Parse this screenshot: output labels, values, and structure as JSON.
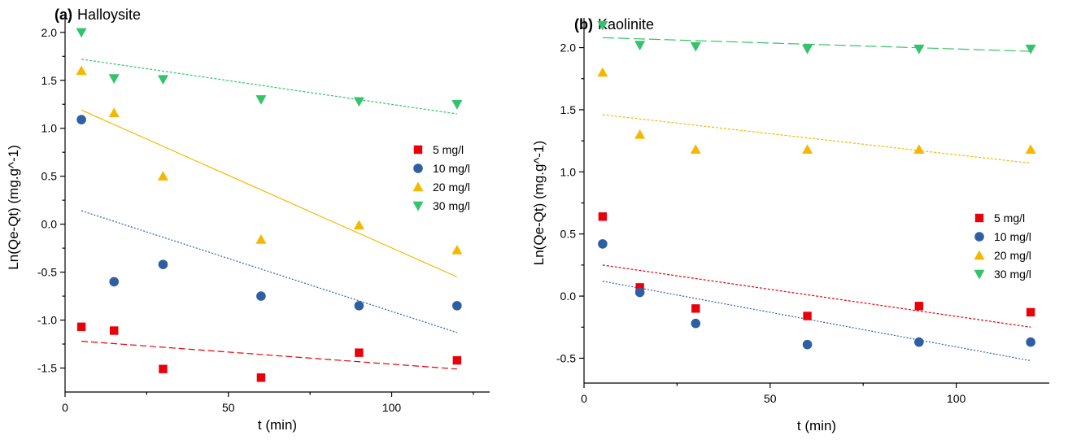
{
  "chart_data": [
    {
      "type": "scatter",
      "panel_letter": "(a)",
      "title": "Halloysite",
      "xlabel": "t (min)",
      "ylabel": "Ln(Qe-Qt) (mg.g^-1)",
      "xlim": [
        0,
        130
      ],
      "ylim": [
        -1.75,
        2.1
      ],
      "xticks": [
        0,
        50,
        100
      ],
      "yticks": [
        -1.5,
        -1.0,
        -0.5,
        0.0,
        0.5,
        1.0,
        1.5,
        2.0
      ],
      "ytick_labels": [
        "-1.5",
        "-1.0",
        "-0.5",
        "0.0",
        "0.5",
        "1.0",
        "1.5",
        "2.0"
      ],
      "legend_position": "right-middle",
      "grid": false,
      "series": [
        {
          "name": "5 mg/l",
          "marker": "square",
          "color": "#e8000b",
          "dash": "8,4",
          "x": [
            5,
            15,
            30,
            60,
            90,
            120
          ],
          "y": [
            -1.07,
            -1.11,
            -1.51,
            -1.6,
            -1.34,
            -1.42
          ],
          "fit": {
            "x": [
              5,
              120
            ],
            "y": [
              -1.22,
              -1.51
            ]
          }
        },
        {
          "name": "10 mg/l",
          "marker": "circle",
          "color": "#2e5fa3",
          "dash": "2,2",
          "x": [
            5,
            15,
            30,
            60,
            90,
            120
          ],
          "y": [
            1.09,
            -0.6,
            -0.42,
            -0.75,
            -0.85,
            -0.85
          ],
          "fit": {
            "x": [
              5,
              120
            ],
            "y": [
              0.14,
              -1.13
            ]
          }
        },
        {
          "name": "20 mg/l",
          "marker": "triangle-up",
          "color": "#f5b800",
          "dash": "",
          "x": [
            5,
            15,
            30,
            60,
            90,
            120
          ],
          "y": [
            1.6,
            1.16,
            0.5,
            -0.16,
            -0.01,
            -0.27
          ],
          "fit": {
            "x": [
              5,
              120
            ],
            "y": [
              1.19,
              -0.55
            ]
          }
        },
        {
          "name": "30 mg/l",
          "marker": "triangle-down",
          "color": "#33c36b",
          "dash": "3,2",
          "x": [
            5,
            15,
            30,
            60,
            90,
            120
          ],
          "y": [
            2.0,
            1.52,
            1.51,
            1.3,
            1.28,
            1.25
          ],
          "fit": {
            "x": [
              5,
              120
            ],
            "y": [
              1.72,
              1.15
            ]
          }
        }
      ]
    },
    {
      "type": "scatter",
      "panel_letter": "(b)",
      "title": "Kaolinite",
      "xlabel": "t (min)",
      "ylabel": "Ln(Qe-Qt) (mg.g^-1)",
      "xlim": [
        0,
        125
      ],
      "ylim": [
        -0.7,
        2.2
      ],
      "xticks": [
        0,
        50,
        100
      ],
      "yticks": [
        -0.5,
        0.0,
        0.5,
        1.0,
        1.5,
        2.0
      ],
      "ytick_labels": [
        "-0.5",
        "0.0",
        "0.5",
        "1.0",
        "1.5",
        "2.0"
      ],
      "legend_position": "right-middle",
      "grid": false,
      "series": [
        {
          "name": "5 mg/l",
          "marker": "square",
          "color": "#e8000b",
          "dash": "3,2",
          "x": [
            5,
            15,
            30,
            60,
            90,
            120
          ],
          "y": [
            0.64,
            0.07,
            -0.1,
            -0.16,
            -0.08,
            -0.13
          ],
          "fit": {
            "x": [
              5,
              120
            ],
            "y": [
              0.25,
              -0.25
            ]
          }
        },
        {
          "name": "10 mg/l",
          "marker": "circle",
          "color": "#2e5fa3",
          "dash": "2,2",
          "x": [
            5,
            15,
            30,
            60,
            90,
            120
          ],
          "y": [
            0.42,
            0.03,
            -0.22,
            -0.39,
            -0.37,
            -0.37
          ],
          "fit": {
            "x": [
              5,
              120
            ],
            "y": [
              0.12,
              -0.52
            ]
          }
        },
        {
          "name": "20 mg/l",
          "marker": "triangle-up",
          "color": "#f5b800",
          "dash": "3,2",
          "x": [
            5,
            15,
            30,
            60,
            90,
            120
          ],
          "y": [
            1.8,
            1.3,
            1.18,
            1.18,
            1.18,
            1.18
          ],
          "fit": {
            "x": [
              5,
              120
            ],
            "y": [
              1.46,
              1.07
            ]
          }
        },
        {
          "name": "30 mg/l",
          "marker": "triangle-down",
          "color": "#33c36b",
          "dash": "14,5",
          "x": [
            5,
            15,
            30,
            60,
            90,
            120
          ],
          "y": [
            2.18,
            2.02,
            2.01,
            1.99,
            1.99,
            1.99
          ],
          "fit": {
            "x": [
              5,
              120
            ],
            "y": [
              2.08,
              1.97
            ]
          }
        }
      ]
    }
  ]
}
